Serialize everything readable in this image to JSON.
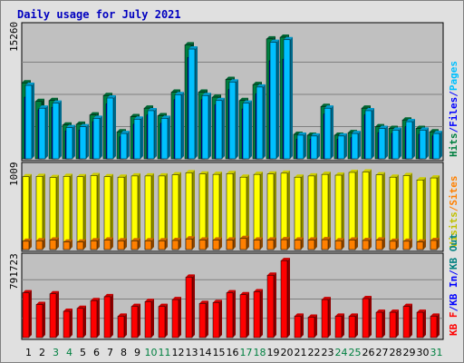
{
  "chart_data": {
    "type": "bar",
    "title": "Daily usage for July 2021",
    "colors": {
      "title": "#0000c0",
      "hits": "#008040",
      "files": "#0000ff",
      "pages": "#00c0ff",
      "visits": "#ffff00",
      "sites": "#ff8000",
      "kb_in": "#0000ff",
      "kb_out": "#008080",
      "kb_f": "#ff0000",
      "weekend_label": "#008040",
      "panel_bg": "#c0c0c0",
      "frame_bg": "#e0e0e0",
      "grid": "#808080"
    },
    "days": [
      "1",
      "2",
      "3",
      "4",
      "5",
      "6",
      "7",
      "8",
      "9",
      "10",
      "11",
      "12",
      "13",
      "14",
      "15",
      "16",
      "17",
      "18",
      "19",
      "20",
      "21",
      "22",
      "23",
      "24",
      "25",
      "26",
      "27",
      "28",
      "29",
      "30",
      "31"
    ],
    "weekend_days": [
      3,
      4,
      10,
      11,
      17,
      18,
      24,
      25,
      31
    ],
    "panels": [
      {
        "ymax_label": "15260",
        "ymax": 15260,
        "side_labels": [
          {
            "text": "Hits",
            "color": "#008040"
          },
          {
            "text": "/",
            "color": "#0000ff"
          },
          {
            "text": "Files",
            "color": "#0000ff"
          },
          {
            "text": "/",
            "color": "#0000ff"
          },
          {
            "text": "Pages",
            "color": "#00c0ff"
          }
        ],
        "series": [
          {
            "name": "Hits",
            "values": [
              9000,
              6800,
              6900,
              4000,
              4100,
              5200,
              7500,
              3200,
              5000,
              6000,
              5100,
              7900,
              13500,
              7900,
              7300,
              9400,
              6900,
              8800,
              14200,
              14400,
              2900,
              2800,
              6200,
              2800,
              3100,
              6000,
              3800,
              3600,
              4600,
              3600,
              3200
            ]
          },
          {
            "name": "Files",
            "values": [
              7300,
              5800,
              6100,
              3300,
              3400,
              4400,
              6500,
              2600,
              4100,
              5200,
              4200,
              7000,
              12000,
              7000,
              6400,
              8200,
              5900,
              7700,
              11600,
              11800,
              2300,
              2300,
              5300,
              2300,
              2500,
              5200,
              3100,
              3000,
              3800,
              2900,
              2700
            ]
          },
          {
            "name": "Pages",
            "values": [
              8700,
              6000,
              6600,
              3700,
              3800,
              4800,
              7200,
              3000,
              4700,
              5700,
              4800,
              7600,
              13000,
              7500,
              6900,
              9100,
              6600,
              8500,
              13800,
              14100,
              2800,
              2700,
              6000,
              2700,
              3000,
              5700,
              3600,
              3400,
              4400,
              3400,
              3000
            ]
          }
        ]
      },
      {
        "ymax_label": "1009",
        "ymax": 1009,
        "side_labels": [
          {
            "text": "Visits",
            "color": "#c0c000"
          },
          {
            "text": "/",
            "color": "#ff8000"
          },
          {
            "text": "Sites",
            "color": "#ff8000"
          }
        ],
        "series": [
          {
            "name": "Visits",
            "values": [
              920,
              925,
              910,
              925,
              920,
              935,
              920,
              915,
              930,
              930,
              930,
              945,
              970,
              955,
              950,
              960,
              915,
              950,
              955,
              965,
              915,
              930,
              950,
              940,
              975,
              980,
              945,
              915,
              935,
              880,
              905
            ]
          },
          {
            "name": "Sites",
            "values": [
              105,
              110,
              120,
              95,
              95,
              110,
              120,
              110,
              110,
              110,
              110,
              115,
              135,
              120,
              120,
              120,
              140,
              120,
              120,
              125,
              120,
              120,
              125,
              110,
              120,
              115,
              120,
              105,
              105,
              95,
              115
            ]
          }
        ]
      },
      {
        "ymax_label": "791723",
        "ymax": 791723,
        "side_labels": [
          {
            "text": "KB F",
            "color": "#ff0000"
          },
          {
            "text": "/",
            "color": "#0000ff"
          },
          {
            "text": "KB In",
            "color": "#0000ff"
          },
          {
            "text": "/",
            "color": "#0000ff"
          },
          {
            "text": "KB Out",
            "color": "#008080"
          }
        ],
        "series": [
          {
            "name": "KB F",
            "values": [
              460000,
              340000,
              450000,
              270000,
              300000,
              380000,
              420000,
              220000,
              320000,
              370000,
              320000,
              390000,
              620000,
              350000,
              360000,
              460000,
              440000,
              470000,
              640000,
              790000,
              220000,
              210000,
              390000,
              220000,
              220000,
              400000,
              260000,
              260000,
              320000,
              260000,
              220000
            ]
          }
        ]
      }
    ]
  }
}
